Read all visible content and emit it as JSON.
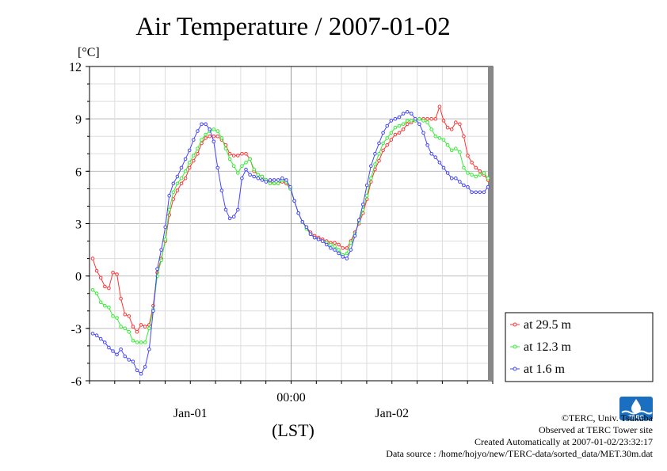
{
  "chart_data": {
    "type": "line",
    "title": "Air Temperature / 2007-01-02",
    "ylabel": "[°C]",
    "xlabel": "(LST)",
    "ylim": [
      -6,
      12
    ],
    "yticks": [
      12,
      9,
      6,
      3,
      0,
      -3,
      -6
    ],
    "x_tick_labels": [
      {
        "label": "00:00",
        "hour": 24
      },
      {
        "label": "Jan-01",
        "hour": 12
      },
      {
        "label": "Jan-02",
        "hour": 36
      }
    ],
    "xlim_hours": [
      0,
      48
    ],
    "grid": true,
    "legend": "bottom-right",
    "series": [
      {
        "name": "at 29.5 m",
        "color": "#ff3333",
        "values": [
          1.0,
          0.3,
          -0.1,
          -0.6,
          -0.7,
          0.2,
          0.1,
          -1.3,
          -2.2,
          -2.3,
          -2.9,
          -3.2,
          -2.8,
          -2.9,
          -2.8,
          -1.7,
          0.2,
          1.0,
          2.0,
          3.5,
          4.4,
          4.9,
          5.3,
          5.6,
          6.2,
          6.6,
          7.0,
          7.6,
          7.9,
          8.0,
          8.0,
          8.0,
          7.8,
          7.5,
          7.0,
          6.9,
          6.9,
          7.0,
          7.0,
          6.7,
          6.0,
          5.8,
          5.7,
          5.5,
          5.4,
          5.3,
          5.3,
          5.4,
          5.3,
          5.0,
          4.3,
          3.6,
          3.1,
          2.8,
          2.5,
          2.3,
          2.2,
          2.1,
          2.0,
          1.9,
          1.9,
          1.8,
          1.6,
          1.6,
          2.0,
          2.5,
          3.0,
          3.6,
          4.4,
          5.4,
          6.1,
          6.6,
          7.2,
          7.5,
          7.8,
          8.1,
          8.2,
          8.4,
          8.7,
          8.8,
          8.9,
          9.0,
          9.0,
          9.0,
          9.0,
          9.0,
          9.7,
          8.9,
          8.5,
          8.4,
          8.8,
          8.7,
          8.0,
          6.9,
          6.5,
          6.2,
          6.0,
          5.8,
          5.5
        ]
      },
      {
        "name": "at 12.3 m",
        "color": "#33ee33",
        "values": [
          -0.8,
          -1.0,
          -1.5,
          -1.7,
          -1.8,
          -2.3,
          -2.4,
          -2.9,
          -3.0,
          -3.2,
          -3.7,
          -3.8,
          -3.8,
          -3.8,
          -3.0,
          -1.9,
          0.0,
          0.9,
          2.1,
          3.8,
          4.8,
          5.3,
          5.6,
          6.0,
          6.5,
          6.9,
          7.3,
          7.8,
          8.1,
          8.3,
          8.4,
          8.3,
          7.9,
          7.3,
          6.7,
          6.3,
          5.9,
          6.3,
          6.5,
          6.7,
          6.1,
          5.8,
          5.7,
          5.5,
          5.3,
          5.3,
          5.3,
          5.5,
          5.4,
          5.0,
          4.3,
          3.6,
          3.1,
          2.7,
          2.4,
          2.2,
          2.1,
          2.0,
          1.9,
          1.8,
          1.7,
          1.5,
          1.2,
          1.3,
          1.9,
          2.4,
          3.1,
          3.8,
          4.6,
          5.6,
          6.4,
          7.0,
          7.6,
          7.9,
          8.2,
          8.5,
          8.6,
          8.7,
          8.9,
          8.9,
          8.9,
          9.0,
          8.9,
          8.8,
          8.4,
          8.0,
          7.9,
          7.8,
          7.5,
          7.2,
          7.3,
          7.1,
          6.2,
          5.9,
          5.8,
          5.7,
          5.8,
          5.9,
          5.6
        ]
      },
      {
        "name": "at 1.6 m",
        "color": "#4444ff",
        "values": [
          -3.3,
          -3.4,
          -3.6,
          -3.8,
          -4.1,
          -4.3,
          -4.5,
          -4.2,
          -4.6,
          -4.8,
          -4.9,
          -5.4,
          -5.6,
          -5.2,
          -4.2,
          -2.0,
          0.4,
          1.5,
          2.8,
          4.6,
          5.3,
          5.7,
          6.2,
          6.7,
          7.2,
          7.8,
          8.3,
          8.7,
          8.7,
          8.4,
          7.7,
          6.2,
          4.9,
          3.8,
          3.3,
          3.4,
          3.8,
          5.6,
          6.1,
          5.8,
          5.7,
          5.6,
          5.5,
          5.4,
          5.5,
          5.5,
          5.5,
          5.6,
          5.5,
          5.1,
          4.3,
          3.6,
          3.1,
          2.8,
          2.4,
          2.2,
          2.1,
          2.0,
          1.8,
          1.6,
          1.5,
          1.3,
          1.1,
          1.0,
          1.5,
          2.3,
          3.2,
          4.1,
          5.2,
          6.3,
          7.0,
          7.6,
          8.2,
          8.6,
          8.9,
          9.0,
          9.1,
          9.3,
          9.4,
          9.3,
          9.0,
          8.7,
          8.2,
          7.5,
          7.0,
          6.8,
          6.5,
          6.2,
          5.9,
          5.6,
          5.6,
          5.4,
          5.2,
          5.1,
          4.8,
          4.8,
          4.8,
          4.8,
          5.1
        ]
      }
    ]
  },
  "credits": {
    "copyright": "©TERC, Univ. Tsukuba",
    "observed": "Observed at TERC Tower site",
    "created": "Created Automatically at 2007-01-02/23:32:17",
    "source": "Data source : /home/hojyo/new/TERC-data/sorted_data/MET.30m.dat"
  },
  "logo": {
    "text": "TERC",
    "color": "#1a6fc0"
  }
}
